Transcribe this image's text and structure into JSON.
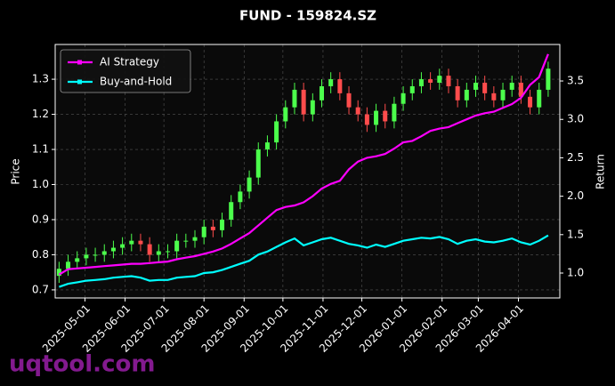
{
  "chart_data": {
    "type": "candlestick",
    "title": "FUND - 159824.SZ",
    "ylabel": "Price",
    "y2label": "Return",
    "watermark": "uqtool.com",
    "x": [
      "2025-04-11",
      "2025-04-18",
      "2025-04-25",
      "2025-05-02",
      "2025-05-09",
      "2025-05-16",
      "2025-05-23",
      "2025-05-30",
      "2025-06-06",
      "2025-06-13",
      "2025-06-20",
      "2025-06-27",
      "2025-07-04",
      "2025-07-11",
      "2025-07-18",
      "2025-07-25",
      "2025-08-01",
      "2025-08-08",
      "2025-08-15",
      "2025-08-22",
      "2025-08-29",
      "2025-09-05",
      "2025-09-12",
      "2025-09-19",
      "2025-09-26",
      "2025-10-03",
      "2025-10-10",
      "2025-10-17",
      "2025-10-24",
      "2025-10-31",
      "2025-11-07",
      "2025-11-14",
      "2025-11-21",
      "2025-11-28",
      "2025-12-05",
      "2025-12-12",
      "2025-12-19",
      "2025-12-26",
      "2026-01-02",
      "2026-01-09",
      "2026-01-16",
      "2026-01-23",
      "2026-01-30",
      "2026-02-06",
      "2026-02-13",
      "2026-02-20",
      "2026-02-27",
      "2026-03-06",
      "2026-03-13",
      "2026-03-20",
      "2026-03-27",
      "2026-04-03",
      "2026-04-10",
      "2026-04-17",
      "2026-04-24"
    ],
    "ohlc": {
      "up_color": "#4cff4c",
      "down_color": "#ff4c4c",
      "open": [
        0.74,
        0.76,
        0.78,
        0.79,
        0.8,
        0.8,
        0.81,
        0.82,
        0.83,
        0.84,
        0.83,
        0.8,
        0.81,
        0.81,
        0.84,
        0.84,
        0.85,
        0.88,
        0.87,
        0.9,
        0.95,
        0.98,
        1.02,
        1.1,
        1.12,
        1.18,
        1.22,
        1.27,
        1.2,
        1.24,
        1.28,
        1.3,
        1.26,
        1.22,
        1.2,
        1.17,
        1.21,
        1.18,
        1.23,
        1.26,
        1.28,
        1.3,
        1.29,
        1.31,
        1.28,
        1.24,
        1.27,
        1.29,
        1.26,
        1.24,
        1.27,
        1.29,
        1.25,
        1.22,
        1.27
      ],
      "high": [
        0.78,
        0.8,
        0.81,
        0.82,
        0.82,
        0.83,
        0.84,
        0.85,
        0.86,
        0.86,
        0.85,
        0.83,
        0.83,
        0.86,
        0.86,
        0.87,
        0.9,
        0.9,
        0.92,
        0.97,
        1.0,
        1.04,
        1.12,
        1.14,
        1.2,
        1.24,
        1.29,
        1.29,
        1.26,
        1.3,
        1.32,
        1.32,
        1.28,
        1.24,
        1.22,
        1.23,
        1.23,
        1.25,
        1.28,
        1.3,
        1.32,
        1.32,
        1.33,
        1.33,
        1.3,
        1.29,
        1.31,
        1.31,
        1.28,
        1.29,
        1.31,
        1.31,
        1.27,
        1.29,
        1.35
      ],
      "low": [
        0.72,
        0.74,
        0.76,
        0.77,
        0.78,
        0.78,
        0.79,
        0.8,
        0.81,
        0.81,
        0.78,
        0.78,
        0.79,
        0.79,
        0.82,
        0.82,
        0.83,
        0.85,
        0.85,
        0.88,
        0.93,
        0.96,
        1.0,
        1.08,
        1.1,
        1.16,
        1.2,
        1.18,
        1.18,
        1.22,
        1.26,
        1.24,
        1.2,
        1.18,
        1.15,
        1.15,
        1.16,
        1.16,
        1.21,
        1.24,
        1.26,
        1.27,
        1.27,
        1.26,
        1.22,
        1.22,
        1.25,
        1.24,
        1.22,
        1.22,
        1.25,
        1.23,
        1.2,
        1.2,
        1.25
      ],
      "close": [
        0.76,
        0.78,
        0.79,
        0.8,
        0.8,
        0.81,
        0.82,
        0.83,
        0.84,
        0.83,
        0.8,
        0.81,
        0.81,
        0.84,
        0.84,
        0.85,
        0.88,
        0.87,
        0.9,
        0.95,
        0.98,
        1.02,
        1.1,
        1.12,
        1.18,
        1.22,
        1.27,
        1.2,
        1.24,
        1.28,
        1.3,
        1.26,
        1.22,
        1.2,
        1.17,
        1.21,
        1.18,
        1.23,
        1.26,
        1.28,
        1.3,
        1.29,
        1.31,
        1.28,
        1.24,
        1.27,
        1.29,
        1.26,
        1.24,
        1.27,
        1.29,
        1.25,
        1.22,
        1.27,
        1.33
      ]
    },
    "series": [
      {
        "name": "AI Strategy",
        "color": "#ff00ff",
        "axis": "y2",
        "values": [
          0.98,
          1.05,
          1.06,
          1.07,
          1.08,
          1.09,
          1.1,
          1.11,
          1.12,
          1.12,
          1.13,
          1.14,
          1.15,
          1.18,
          1.2,
          1.22,
          1.25,
          1.28,
          1.32,
          1.38,
          1.45,
          1.52,
          1.62,
          1.72,
          1.82,
          1.86,
          1.88,
          1.92,
          2.0,
          2.1,
          2.16,
          2.2,
          2.35,
          2.45,
          2.5,
          2.52,
          2.55,
          2.62,
          2.7,
          2.72,
          2.78,
          2.85,
          2.88,
          2.9,
          2.95,
          3.0,
          3.05,
          3.08,
          3.1,
          3.15,
          3.2,
          3.28,
          3.45,
          3.55,
          3.85
        ]
      },
      {
        "name": "Buy-and-Hold",
        "color": "#00ffff",
        "axis": "y2",
        "values": [
          0.82,
          0.86,
          0.88,
          0.9,
          0.91,
          0.92,
          0.94,
          0.95,
          0.96,
          0.94,
          0.9,
          0.91,
          0.91,
          0.94,
          0.95,
          0.96,
          1.0,
          1.01,
          1.04,
          1.08,
          1.12,
          1.16,
          1.24,
          1.28,
          1.34,
          1.4,
          1.45,
          1.36,
          1.4,
          1.44,
          1.46,
          1.42,
          1.38,
          1.36,
          1.33,
          1.37,
          1.34,
          1.38,
          1.42,
          1.44,
          1.46,
          1.45,
          1.47,
          1.44,
          1.38,
          1.42,
          1.44,
          1.41,
          1.4,
          1.42,
          1.45,
          1.4,
          1.37,
          1.42,
          1.49
        ]
      }
    ],
    "xlim": [
      "2025-04-08",
      "2026-05-03"
    ],
    "xticks": [
      "2025-05-01",
      "2025-06-01",
      "2025-07-01",
      "2025-08-01",
      "2025-09-01",
      "2025-10-01",
      "2025-11-01",
      "2025-12-01",
      "2026-01-01",
      "2026-02-01",
      "2026-03-01",
      "2026-04-01"
    ],
    "ylim": [
      0.677,
      1.399
    ],
    "yticks": [
      0.7,
      0.8,
      0.9,
      {
        "value": 1,
        "label": "1.0"
      },
      1.1,
      1.2,
      1.3
    ],
    "y2lim": [
      0.676,
      3.975
    ],
    "y2ticks": [
      {
        "value": 1,
        "label": "1.0"
      },
      1.5,
      {
        "value": 2,
        "label": "2.0"
      },
      2.5,
      {
        "value": 3,
        "label": "3.0"
      },
      3.5
    ],
    "grid": true,
    "legend": "upper left"
  }
}
